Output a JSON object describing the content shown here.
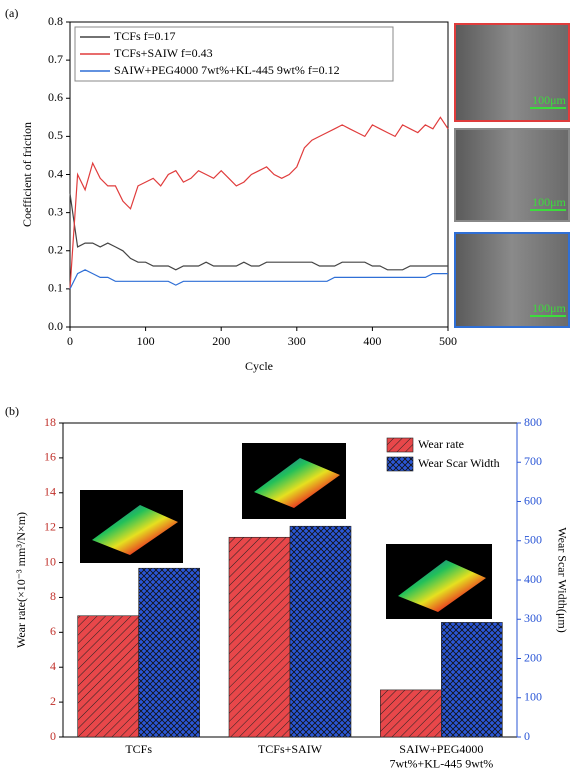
{
  "chart_data": [
    {
      "type": "line",
      "panel_label": "(a)",
      "x_label": "Cycle",
      "y_label": "Coefficient of friction",
      "x": [
        0,
        10,
        20,
        30,
        40,
        50,
        60,
        70,
        80,
        90,
        100,
        110,
        120,
        130,
        140,
        150,
        160,
        170,
        180,
        190,
        200,
        210,
        220,
        230,
        240,
        250,
        260,
        270,
        280,
        290,
        300,
        310,
        320,
        330,
        340,
        350,
        360,
        370,
        380,
        390,
        400,
        410,
        420,
        430,
        440,
        450,
        460,
        470,
        480,
        490,
        500
      ],
      "series": [
        {
          "name": "TCFs f=0.17",
          "color": "#444444",
          "values": [
            0.35,
            0.21,
            0.22,
            0.22,
            0.21,
            0.22,
            0.21,
            0.2,
            0.18,
            0.17,
            0.17,
            0.16,
            0.16,
            0.16,
            0.15,
            0.16,
            0.16,
            0.16,
            0.17,
            0.16,
            0.16,
            0.16,
            0.16,
            0.17,
            0.16,
            0.16,
            0.17,
            0.17,
            0.17,
            0.17,
            0.17,
            0.17,
            0.17,
            0.16,
            0.16,
            0.16,
            0.17,
            0.17,
            0.17,
            0.17,
            0.16,
            0.16,
            0.15,
            0.15,
            0.15,
            0.16,
            0.16,
            0.16,
            0.16,
            0.16,
            0.16
          ]
        },
        {
          "name": "TCFs+SAIW f=0.43",
          "color": "#e03c3c",
          "values": [
            0.1,
            0.4,
            0.36,
            0.43,
            0.39,
            0.37,
            0.37,
            0.33,
            0.31,
            0.37,
            0.38,
            0.39,
            0.37,
            0.4,
            0.41,
            0.38,
            0.39,
            0.41,
            0.4,
            0.39,
            0.41,
            0.39,
            0.37,
            0.38,
            0.4,
            0.41,
            0.42,
            0.4,
            0.39,
            0.4,
            0.42,
            0.47,
            0.49,
            0.5,
            0.51,
            0.52,
            0.53,
            0.52,
            0.51,
            0.5,
            0.53,
            0.52,
            0.51,
            0.5,
            0.53,
            0.52,
            0.51,
            0.53,
            0.52,
            0.55,
            0.52
          ]
        },
        {
          "name": "SAIW+PEG4000 7wt%+KL-445 9wt% f=0.12",
          "color": "#2f6fd6",
          "values": [
            0.1,
            0.14,
            0.15,
            0.14,
            0.13,
            0.13,
            0.12,
            0.12,
            0.12,
            0.12,
            0.12,
            0.12,
            0.12,
            0.12,
            0.11,
            0.12,
            0.12,
            0.12,
            0.12,
            0.12,
            0.12,
            0.12,
            0.12,
            0.12,
            0.12,
            0.12,
            0.12,
            0.12,
            0.12,
            0.12,
            0.12,
            0.12,
            0.12,
            0.12,
            0.12,
            0.13,
            0.13,
            0.13,
            0.13,
            0.13,
            0.13,
            0.13,
            0.13,
            0.13,
            0.13,
            0.13,
            0.13,
            0.13,
            0.14,
            0.14,
            0.14
          ]
        }
      ],
      "xlim": [
        0,
        500
      ],
      "xticks": [
        0,
        100,
        200,
        300,
        400,
        500
      ],
      "ylim": [
        0,
        0.8
      ],
      "yticks": [
        {
          "value": 0,
          "label": "0.0"
        },
        0.1,
        0.2,
        0.3,
        0.4,
        0.5,
        0.6,
        0.7,
        0.8
      ],
      "legend": "upper-left",
      "annotations": [
        "100μm",
        "100μm",
        "100μm"
      ]
    },
    {
      "type": "bar",
      "panel_label": "(b)",
      "y_label": "Wear rate(×10⁻³ mm³/N×m)",
      "y2_label": "Wear Scar Width(μm)",
      "categories": [
        "TCFs",
        "TCFs+SAIW",
        "SAIW+PEG4000\n7wt%+KL-445 9wt%"
      ],
      "series": [
        {
          "name": "Wear rate",
          "color": "#e8474a",
          "values": [
            6.95,
            11.45,
            2.7
          ]
        },
        {
          "name": "Wear Scar Width",
          "color": "#2a56d6",
          "axis": "y2",
          "values": [
            430,
            537,
            292
          ]
        }
      ],
      "ylim": [
        0,
        18
      ],
      "yticks": [
        0,
        2,
        4,
        6,
        8,
        10,
        12,
        14,
        16,
        18
      ],
      "y2lim": [
        0,
        800
      ],
      "y2ticks": [
        0,
        100,
        200,
        300,
        400,
        500,
        600,
        700,
        800
      ],
      "y2_color": "#2a56d6",
      "legend": "upper-right"
    }
  ]
}
